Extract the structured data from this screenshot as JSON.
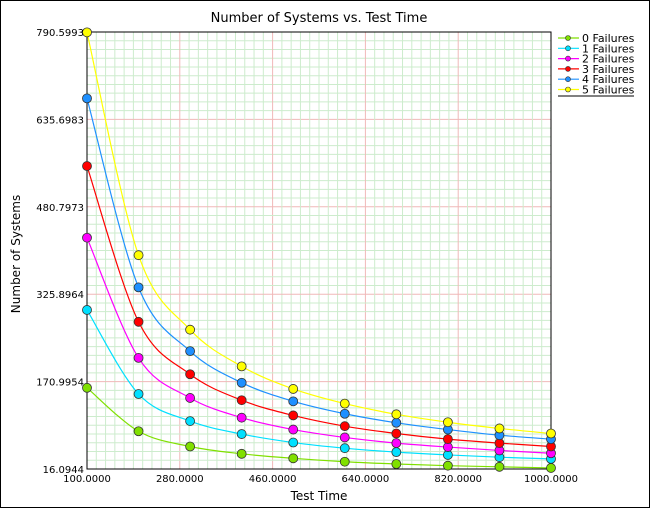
{
  "chart_data": {
    "type": "line",
    "title": "Number of Systems vs. Test Time",
    "xlabel": "Test Time",
    "ylabel": "Number of Systems",
    "xlim": [
      100,
      1000
    ],
    "ylim": [
      16.0944,
      790.5993
    ],
    "xticks": [
      "100.0000",
      "280.0000",
      "460.0000",
      "640.0000",
      "820.0000",
      "1000.0000"
    ],
    "yticks": [
      "16.0944",
      "170.9954",
      "325.8964",
      "480.7973",
      "635.6983",
      "790.5993"
    ],
    "grid": true,
    "legend_position": "top-right",
    "x": [
      100,
      200,
      300,
      400,
      500,
      600,
      700,
      800,
      900,
      1000
    ],
    "series": [
      {
        "name": "0 Failures",
        "color": "#80e000",
        "values": [
          160,
          83,
          56,
          43,
          35,
          29,
          25,
          22,
          20,
          18
        ]
      },
      {
        "name": "1 Failures",
        "color": "#00e0ff",
        "values": [
          298,
          149,
          101,
          78,
          63,
          53,
          46,
          41,
          37,
          34
        ]
      },
      {
        "name": "2 Failures",
        "color": "#ff00ff",
        "values": [
          426,
          213,
          142,
          107,
          86,
          72,
          62,
          55,
          49,
          44
        ]
      },
      {
        "name": "3 Failures",
        "color": "#ff0000",
        "values": [
          553,
          277,
          184,
          138,
          111,
          92,
          79,
          69,
          62,
          56
        ]
      },
      {
        "name": "4 Failures",
        "color": "#1e90ff",
        "values": [
          673,
          338,
          225,
          169,
          136,
          114,
          98,
          86,
          76,
          69
        ]
      },
      {
        "name": "5 Failures",
        "color": "#ffff00",
        "values": [
          790,
          395,
          263,
          198,
          158,
          132,
          113,
          99,
          88,
          79
        ]
      }
    ]
  }
}
